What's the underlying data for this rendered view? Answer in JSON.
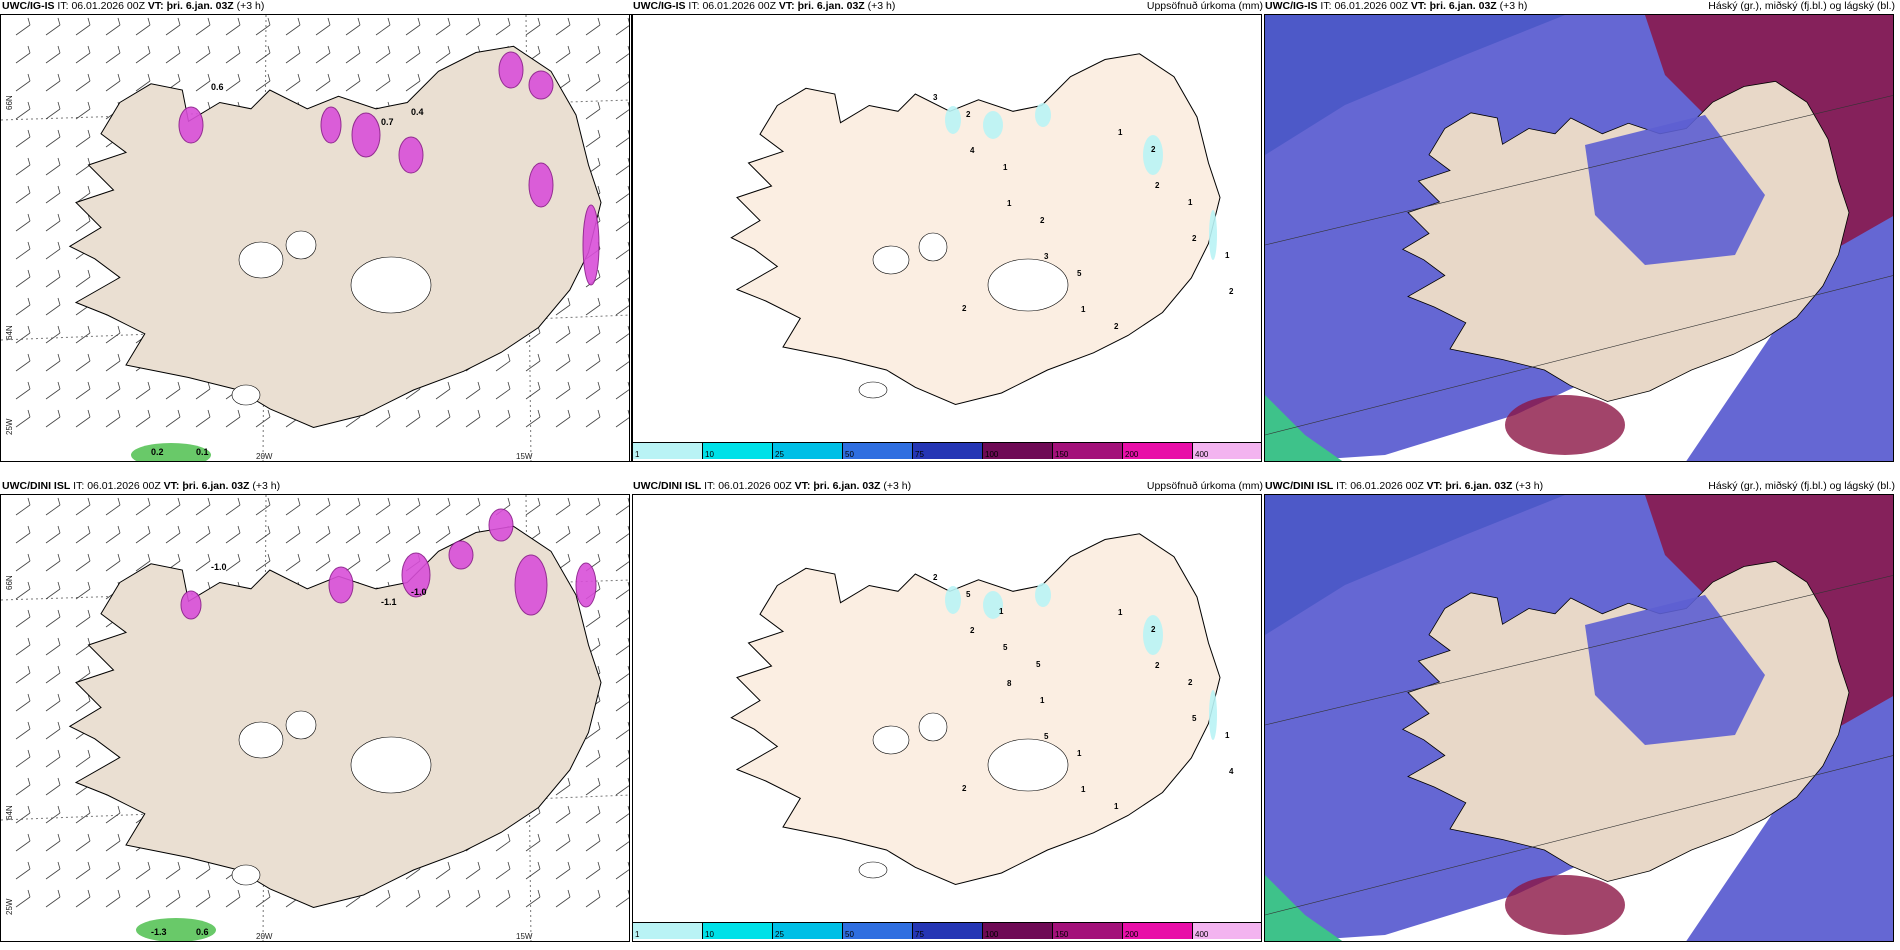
{
  "rows": [
    {
      "model": "UWC/IG-IS",
      "it_label": "IT:",
      "it_value": "06.01.2026 00Z",
      "vt_label": "VT:",
      "vt_value": "þri. 6.jan. 03Z",
      "lead": "(+3 h)",
      "lat_labels": [
        "66N",
        "64N",
        "25W"
      ],
      "lon_labels": [
        "20W",
        "15W"
      ],
      "precip_numbers": [
        "3",
        "4",
        "1",
        "3",
        "1",
        "1",
        "2",
        "2",
        "2",
        "2",
        "1",
        "2",
        "5",
        "2",
        "2",
        "1",
        "1",
        "2"
      ],
      "wind_numbers": [
        "0.6",
        "0.7",
        "0.4",
        "0.2",
        "0.1"
      ]
    },
    {
      "model": "UWC/DINI ISL",
      "it_label": "IT:",
      "it_value": "06.01.2026 00Z",
      "vt_label": "VT:",
      "vt_value": "þri. 6.jan. 03Z",
      "lead": "(+3 h)",
      "lat_labels": [
        "66N",
        "64N",
        "25W"
      ],
      "lon_labels": [
        "20W",
        "15W"
      ],
      "precip_numbers": [
        "2",
        "2",
        "8",
        "5",
        "1",
        "1",
        "2",
        "5",
        "4",
        "5",
        "5",
        "1",
        "1",
        "1",
        "2",
        "2",
        "1",
        "2",
        "1",
        "5"
      ],
      "wind_numbers": [
        "-1.0",
        "-1.1",
        "-1.0",
        "-1.3",
        "0.6"
      ]
    }
  ],
  "precip_title": "Uppsöfnuð úrkoma (mm)",
  "cloud_title": "Háský (gr.), miðský (fj.bl.) og lágský (bl.)",
  "legend": {
    "ticks": [
      "1",
      "10",
      "25",
      "50",
      "75",
      "100",
      "150",
      "200",
      "400"
    ],
    "colors": [
      "#b9f3f5",
      "#00e1e8",
      "#00bfe6",
      "#2f6ee0",
      "#2536b5",
      "#6e0a55",
      "#a3117a",
      "#e80fa8",
      "#f3b4f0"
    ]
  },
  "colors": {
    "land_wind": "#eadfd2",
    "land_precip": "#fbeee2",
    "land_cloud": "#e8d8c8",
    "sea_cloud": "#5d5fd1",
    "high_cloud": "#8b1545",
    "precip_cyan": "#b9f3f5",
    "wind_magenta": "#d94fd9"
  }
}
